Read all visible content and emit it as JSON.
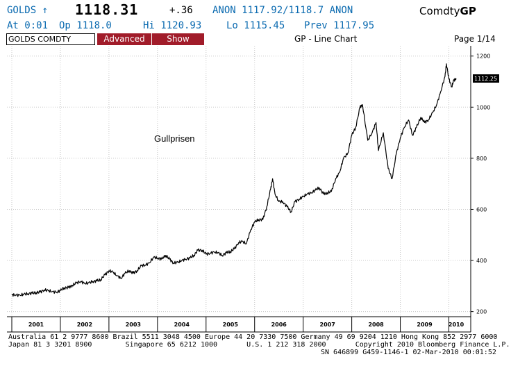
{
  "header": {
    "ticker_label": "GOLDS ↑",
    "last_price": "1118.31",
    "net_change": "+.36",
    "bid_ask": "ANON 1117.92/1118.7 ANON",
    "comdty_prefix": "Comdty",
    "comdty_function": "GP",
    "at": "At  0:01",
    "open": "Op 1118.0",
    "high": "Hi 1120.93",
    "low": "Lo 1115.45",
    "prev": "Prev 1117.95"
  },
  "toolbar": {
    "security_value": "GOLDS COMDTY",
    "advanced_label": "Advanced",
    "show_label": "Show",
    "chart_type_label": "GP - Line Chart",
    "page_indicator": "Page 1/14"
  },
  "chart_data": {
    "type": "line",
    "annotation": "Gullprisen",
    "last_value_label": "1112.25",
    "last_value": 1112.25,
    "ylim": [
      180,
      1240
    ],
    "xlim": [
      2000.9,
      2010.45
    ],
    "y_ticks": [
      200,
      400,
      600,
      800,
      1000,
      1200
    ],
    "x_tick_labels": [
      "2001",
      "2002",
      "2003",
      "2004",
      "2005",
      "2006",
      "2007",
      "2008",
      "2009",
      "2010"
    ],
    "x_tick_positions": [
      2001.5,
      2002.5,
      2003.5,
      2004.5,
      2005.5,
      2006.5,
      2007.5,
      2008.5,
      2009.5,
      2010.15
    ],
    "colors": {
      "line": "#000000",
      "grid": "#c8c8c8",
      "axis_text": "#000000",
      "label_bg": "#000000"
    },
    "series": [
      {
        "x": [
          2001.0,
          2001.08,
          2001.17,
          2001.25,
          2001.33,
          2001.42,
          2001.5,
          2001.58,
          2001.67,
          2001.75,
          2001.83,
          2001.92,
          2002.0,
          2002.08,
          2002.17,
          2002.25,
          2002.33,
          2002.42,
          2002.5,
          2002.58,
          2002.67,
          2002.75,
          2002.83,
          2002.92,
          2003.0,
          2003.08,
          2003.17,
          2003.25,
          2003.33,
          2003.42,
          2003.5,
          2003.58,
          2003.67,
          2003.75,
          2003.83,
          2003.92,
          2004.0,
          2004.08,
          2004.17,
          2004.25,
          2004.33,
          2004.42,
          2004.5,
          2004.58,
          2004.67,
          2004.75,
          2004.83,
          2004.92,
          2005.0,
          2005.08,
          2005.17,
          2005.25,
          2005.33,
          2005.42,
          2005.5,
          2005.58,
          2005.67,
          2005.75,
          2005.83,
          2005.92,
          2006.0,
          2006.08,
          2006.17,
          2006.25,
          2006.33,
          2006.37,
          2006.42,
          2006.5,
          2006.58,
          2006.67,
          2006.75,
          2006.83,
          2006.92,
          2007.0,
          2007.08,
          2007.17,
          2007.25,
          2007.33,
          2007.42,
          2007.5,
          2007.58,
          2007.67,
          2007.75,
          2007.83,
          2007.92,
          2008.0,
          2008.08,
          2008.17,
          2008.22,
          2008.33,
          2008.42,
          2008.5,
          2008.55,
          2008.65,
          2008.75,
          2008.83,
          2008.92,
          2009.0,
          2009.08,
          2009.17,
          2009.25,
          2009.33,
          2009.42,
          2009.5,
          2009.58,
          2009.67,
          2009.75,
          2009.83,
          2009.92,
          2009.95,
          2010.0,
          2010.06,
          2010.1,
          2010.15
        ],
        "y": [
          266,
          265,
          264,
          268,
          270,
          272,
          274,
          276,
          285,
          282,
          278,
          276,
          282,
          293,
          294,
          303,
          312,
          318,
          310,
          312,
          318,
          320,
          325,
          344,
          360,
          355,
          340,
          330,
          350,
          360,
          350,
          360,
          380,
          382,
          390,
          412,
          410,
          405,
          420,
          405,
          390,
          393,
          400,
          405,
          410,
          420,
          440,
          440,
          425,
          428,
          433,
          430,
          420,
          430,
          435,
          445,
          470,
          475,
          465,
          520,
          550,
          560,
          560,
          610,
          680,
          720,
          660,
          630,
          630,
          610,
          590,
          630,
          640,
          650,
          660,
          665,
          675,
          685,
          660,
          665,
          670,
          720,
          745,
          800,
          820,
          890,
          920,
          1000,
          1010,
          870,
          900,
          940,
          830,
          900,
          760,
          720,
          820,
          880,
          920,
          950,
          890,
          920,
          960,
          940,
          950,
          980,
          1010,
          1060,
          1120,
          1170,
          1110,
          1080,
          1105,
          1112
        ]
      }
    ]
  }
}
